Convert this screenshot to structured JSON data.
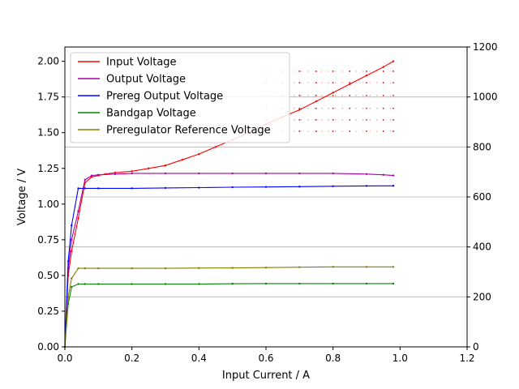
{
  "chart_data": {
    "type": "line",
    "title": "",
    "xlabel": "Input Current / A",
    "ylabel": "Voltage / V",
    "y2label": "",
    "xlim": [
      0.0,
      1.2
    ],
    "ylim": [
      0.0,
      2.1
    ],
    "y2lim": [
      0,
      1200
    ],
    "xticks": [
      "0.0",
      "0.2",
      "0.4",
      "0.6",
      "0.8",
      "1.0",
      "1.2"
    ],
    "yticks": [
      "0.00",
      "0.25",
      "0.50",
      "0.75",
      "1.00",
      "1.25",
      "1.50",
      "1.75",
      "2.00"
    ],
    "y2ticks": [
      "0",
      "200",
      "400",
      "600",
      "800",
      "1000",
      "1200"
    ],
    "grid": "horizontal gridlines at right-axis ticks",
    "legend_position": "top-left",
    "series": [
      {
        "name": "Input Voltage",
        "color": "#ff0000",
        "x": [
          0.0,
          0.01,
          0.02,
          0.04,
          0.06,
          0.08,
          0.1,
          0.12,
          0.15,
          0.2,
          0.25,
          0.3,
          0.35,
          0.4,
          0.45,
          0.5,
          0.55,
          0.6,
          0.65,
          0.7,
          0.75,
          0.8,
          0.85,
          0.9,
          0.95,
          0.98
        ],
        "y": [
          0.0,
          0.5,
          0.67,
          0.9,
          1.15,
          1.19,
          1.2,
          1.21,
          1.22,
          1.23,
          1.25,
          1.27,
          1.31,
          1.35,
          1.4,
          1.45,
          1.5,
          1.56,
          1.61,
          1.66,
          1.72,
          1.78,
          1.84,
          1.9,
          1.96,
          2.0
        ]
      },
      {
        "name": "Output Voltage",
        "color": "#aa00aa",
        "x": [
          0.0,
          0.01,
          0.02,
          0.04,
          0.06,
          0.08,
          0.1,
          0.15,
          0.2,
          0.3,
          0.4,
          0.5,
          0.6,
          0.7,
          0.8,
          0.9,
          0.95,
          0.98
        ],
        "y": [
          0.0,
          0.55,
          0.75,
          0.95,
          1.17,
          1.2,
          1.205,
          1.21,
          1.215,
          1.215,
          1.215,
          1.215,
          1.215,
          1.215,
          1.215,
          1.21,
          1.205,
          1.2
        ]
      },
      {
        "name": "Prereg Output Voltage",
        "color": "#0000ff",
        "x": [
          0.0,
          0.01,
          0.02,
          0.04,
          0.06,
          0.1,
          0.2,
          0.3,
          0.4,
          0.5,
          0.6,
          0.7,
          0.8,
          0.9,
          0.98
        ],
        "y": [
          0.0,
          0.6,
          0.85,
          1.11,
          1.11,
          1.11,
          1.11,
          1.113,
          1.115,
          1.118,
          1.12,
          1.122,
          1.125,
          1.127,
          1.128
        ]
      },
      {
        "name": "Bandgap Voltage",
        "color": "#008800",
        "x": [
          0.0,
          0.01,
          0.02,
          0.04,
          0.06,
          0.1,
          0.2,
          0.3,
          0.4,
          0.5,
          0.6,
          0.7,
          0.8,
          0.9,
          0.98
        ],
        "y": [
          0.0,
          0.3,
          0.42,
          0.44,
          0.44,
          0.44,
          0.44,
          0.44,
          0.44,
          0.442,
          0.443,
          0.443,
          0.443,
          0.443,
          0.443
        ]
      },
      {
        "name": "Preregulator Reference Voltage",
        "color": "#808000",
        "x": [
          0.0,
          0.01,
          0.02,
          0.04,
          0.06,
          0.1,
          0.2,
          0.3,
          0.4,
          0.5,
          0.6,
          0.7,
          0.8,
          0.9,
          0.98
        ],
        "y": [
          0.0,
          0.35,
          0.48,
          0.55,
          0.55,
          0.55,
          0.55,
          0.55,
          0.552,
          0.553,
          0.555,
          0.558,
          0.56,
          0.56,
          0.56
        ]
      }
    ],
    "plateau_series_color": "#ff0000",
    "plateau_levels": [
      1.51,
      1.59,
      1.67,
      1.76,
      1.85,
      1.93
    ],
    "plateau_x": [
      0.6,
      0.65,
      0.7,
      0.75,
      0.8,
      0.85,
      0.9,
      0.95,
      0.98
    ]
  }
}
